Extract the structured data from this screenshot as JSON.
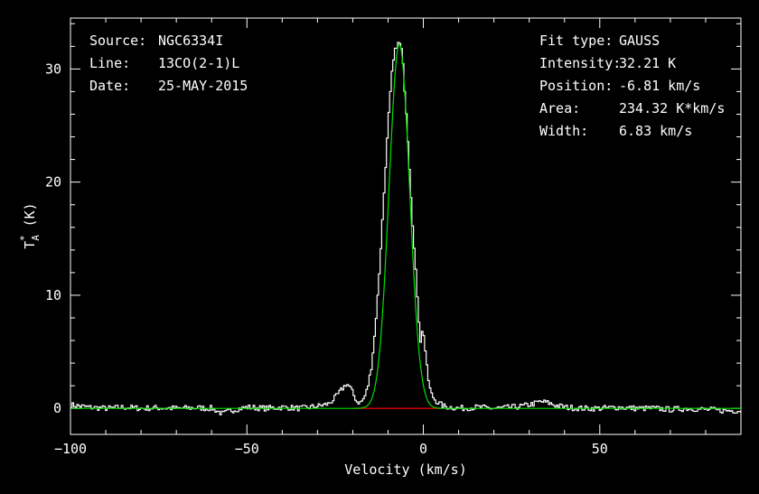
{
  "info_left": [
    {
      "key": "Source:",
      "value": "NGC6334I"
    },
    {
      "key": "Line:",
      "value": "13CO(2-1)L"
    },
    {
      "key": "Date:",
      "value": "25-MAY-2015"
    }
  ],
  "info_right": [
    {
      "key": "Fit type:",
      "value": "GAUSS"
    },
    {
      "key": "Intensity:",
      "value": "32.21 K"
    },
    {
      "key": "Position:",
      "value": "-6.81 km/s"
    },
    {
      "key": "Area:",
      "value": "234.32 K*km/s"
    },
    {
      "key": "Width:",
      "value": "6.83 km/s"
    }
  ],
  "chart_data": {
    "type": "line",
    "xlabel": "Velocity (km/s)",
    "ylabel_main": "T",
    "ylabel_sup": "*",
    "ylabel_sub": "A",
    "ylabel_unit": " (K)",
    "xlim": [
      -100,
      90
    ],
    "ylim": [
      -2.3,
      34.5
    ],
    "x_ticks": [
      -100,
      -50,
      0,
      50
    ],
    "x_tick_labels": [
      "−100",
      "−50",
      "0",
      "50"
    ],
    "y_ticks": [
      0,
      10,
      20,
      30
    ],
    "y_tick_labels": [
      "0",
      "10",
      "20",
      "30"
    ],
    "grid": false,
    "colors": {
      "spectrum": "#ffffff",
      "fit": "#00e000",
      "baseline": "#e00000",
      "frame": "#ffffff",
      "background": "#000000"
    },
    "series": [
      {
        "role": "spectrum",
        "x": [
          -100,
          -95,
          -90,
          -85,
          -80,
          -75,
          -70,
          -65,
          -60,
          -57,
          -55,
          -52,
          -50,
          -45,
          -40,
          -35,
          -30,
          -27,
          -25,
          -23,
          -22,
          -21,
          -20,
          -19,
          -18,
          -17,
          -16,
          -15,
          -14,
          -13,
          -12,
          -11,
          -10,
          -9,
          -8,
          -7,
          -6.5,
          -6,
          -5,
          -4,
          -3,
          -2,
          -1.5,
          -1,
          -0.5,
          0,
          0.5,
          1,
          1.5,
          2,
          3,
          4,
          5,
          6,
          8,
          10,
          15,
          20,
          25,
          28,
          31,
          33,
          35,
          37,
          40,
          45,
          50,
          55,
          60,
          65,
          70,
          75,
          80,
          85,
          90
        ],
        "y": [
          0.3,
          0.1,
          0.0,
          0.1,
          0.0,
          0.05,
          0.0,
          0.05,
          0.0,
          -0.5,
          -0.2,
          0.0,
          0.1,
          0.0,
          0.1,
          0.0,
          0.2,
          0.4,
          1.0,
          1.8,
          2.2,
          1.9,
          1.2,
          0.6,
          0.5,
          0.9,
          1.8,
          3.5,
          6.5,
          10.5,
          15.5,
          21.0,
          26.0,
          30.0,
          32.0,
          32.3,
          32.0,
          30.5,
          26.0,
          20.5,
          15.0,
          10.5,
          8.0,
          6.0,
          6.8,
          6.5,
          4.5,
          3.0,
          2.0,
          1.3,
          0.8,
          0.5,
          0.3,
          0.15,
          0.1,
          0.0,
          0.1,
          0.0,
          0.1,
          0.2,
          0.4,
          0.6,
          0.5,
          0.3,
          0.1,
          0.0,
          0.0,
          0.1,
          0.0,
          0.0,
          -0.1,
          0.0,
          -0.1,
          -0.2,
          -0.2
        ]
      },
      {
        "role": "fit",
        "type": "gauss",
        "amplitude": 32.21,
        "center": -6.81,
        "fwhm": 6.83
      },
      {
        "role": "baseline",
        "x": [
          -20,
          5
        ],
        "y": [
          0,
          0
        ]
      }
    ]
  }
}
